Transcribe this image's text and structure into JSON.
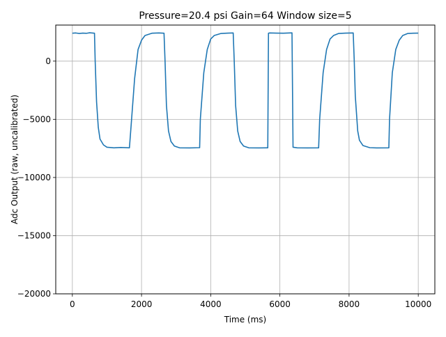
{
  "chart_data": {
    "type": "line",
    "title": "Pressure=20.4 psi Gain=64 Window size=5",
    "xlabel": "Time (ms)",
    "ylabel": "Adc Output (raw, uncalibrated)",
    "xlim": [
      -480,
      10480
    ],
    "ylim": [
      -20000,
      3100
    ],
    "xticks": [
      0,
      2000,
      4000,
      6000,
      8000,
      10000
    ],
    "xtick_labels": [
      "0",
      "2000",
      "4000",
      "6000",
      "8000",
      "10000"
    ],
    "yticks": [
      0,
      -5000,
      -10000,
      -15000,
      -20000
    ],
    "ytick_labels": [
      "0",
      "−5000",
      "−10000",
      "−15000",
      "−20000"
    ],
    "grid": true,
    "line_color": "#1f77b4",
    "series": [
      {
        "x": [
          0,
          100,
          200,
          300,
          400,
          500,
          640,
          660,
          700,
          750,
          800,
          900,
          1000,
          1200,
          1400,
          1650,
          1700,
          1800,
          1900,
          2000,
          2100,
          2300,
          2500,
          2650,
          2680,
          2720,
          2780,
          2850,
          2950,
          3100,
          3400,
          3680,
          3700,
          3800,
          3900,
          4000,
          4100,
          4300,
          4500,
          4650,
          4680,
          4720,
          4780,
          4850,
          4950,
          5100,
          5400,
          5650,
          5670,
          5700,
          5900,
          6100,
          6350,
          6380,
          6500,
          6800,
          7120,
          7150,
          7250,
          7350,
          7450,
          7550,
          7700,
          7900,
          8120,
          8150,
          8180,
          8250,
          8300,
          8400,
          8600,
          8800,
          9150,
          9170,
          9250,
          9350,
          9450,
          9550,
          9700,
          9850,
          10000
        ],
        "y": [
          2400,
          2420,
          2380,
          2410,
          2390,
          2440,
          2400,
          0,
          -3500,
          -5700,
          -6700,
          -7200,
          -7400,
          -7450,
          -7420,
          -7450,
          -5500,
          -1500,
          1000,
          1800,
          2200,
          2400,
          2420,
          2400,
          0,
          -3800,
          -6000,
          -6900,
          -7300,
          -7450,
          -7460,
          -7440,
          -5000,
          -1000,
          1000,
          1900,
          2200,
          2380,
          2410,
          2420,
          0,
          -3800,
          -6000,
          -6900,
          -7300,
          -7450,
          -7460,
          -7450,
          2400,
          2420,
          2410,
          2400,
          2430,
          -7400,
          -7450,
          -7460,
          -7450,
          -5000,
          -1000,
          1000,
          1900,
          2200,
          2380,
          2410,
          2420,
          0,
          -3000,
          -6000,
          -6800,
          -7250,
          -7440,
          -7460,
          -7450,
          -5000,
          -1000,
          1000,
          1800,
          2200,
          2380,
          2400,
          2410
        ]
      }
    ]
  }
}
